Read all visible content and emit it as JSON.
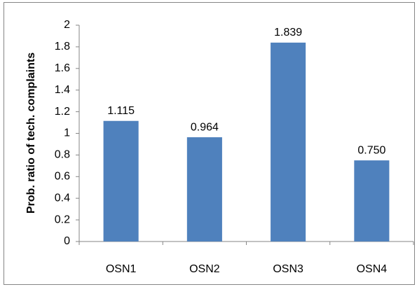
{
  "chart_data": {
    "type": "bar",
    "y_label": "Prob. ratio  of tech. complaints",
    "categories": [
      "OSN1",
      "OSN2",
      "OSN3",
      "OSN4"
    ],
    "values": [
      1.115,
      0.964,
      1.839,
      0.75
    ],
    "value_labels": [
      "1.115",
      "0.964",
      "1.839",
      "0.750"
    ],
    "color": "#4f81bd",
    "ylim": [
      0,
      2
    ],
    "yticks": [
      0,
      0.2,
      0.4,
      0.6,
      0.8,
      1,
      1.2,
      1.4,
      1.6,
      1.8,
      2
    ],
    "grid": false
  }
}
